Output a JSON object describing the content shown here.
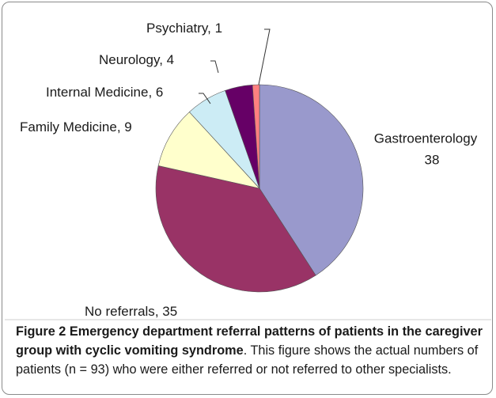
{
  "chart_data": {
    "type": "pie",
    "categories": [
      "Gastroenterology",
      "No referrals",
      "Family Medicine",
      "Internal Medicine",
      "Neurology",
      "Psychiatry"
    ],
    "values": [
      38,
      35,
      9,
      6,
      4,
      1
    ],
    "value_labels": [
      "38",
      ", 35",
      ", 9",
      ", 6",
      ", 4",
      ", 1"
    ],
    "colors": [
      "#9999cc",
      "#993366",
      "#ffffcc",
      "#ccecf5",
      "#660066",
      "#ff8080"
    ],
    "start_angle": 0,
    "direction": "clockwise"
  },
  "caption": {
    "label": "Figure 2 Emergency department referral patterns of patients in the caregiver group with cyclic vomiting syndrome",
    "text": ". This figure shows the actual numbers of patients (n = 93) who were either referred or not referred to other specialists."
  }
}
